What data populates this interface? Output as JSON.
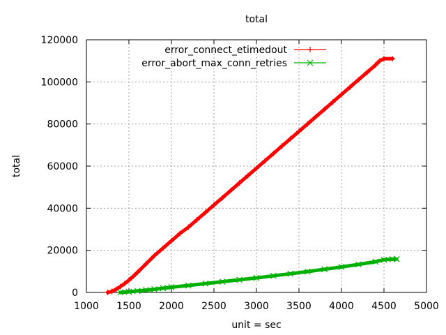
{
  "chart_data": {
    "type": "line",
    "title": "total",
    "xlabel": "unit = sec",
    "ylabel": "total",
    "xlim": [
      1000,
      5000
    ],
    "ylim": [
      0,
      120000
    ],
    "x_ticks": [
      1000,
      1500,
      2000,
      2500,
      3000,
      3500,
      4000,
      4500,
      5000
    ],
    "y_ticks": [
      0,
      20000,
      40000,
      60000,
      80000,
      100000,
      120000
    ],
    "grid": true,
    "legend_position": "top-center",
    "series": [
      {
        "name": "error_connect_etimedout",
        "color": "#ff0000",
        "marker": "plus",
        "points": [
          [
            1250,
            0
          ],
          [
            1300,
            500
          ],
          [
            1350,
            1500
          ],
          [
            1400,
            2800
          ],
          [
            1450,
            4200
          ],
          [
            1500,
            5800
          ],
          [
            1550,
            7600
          ],
          [
            1600,
            9500
          ],
          [
            1700,
            13500
          ],
          [
            1800,
            17500
          ],
          [
            1900,
            21000
          ],
          [
            2000,
            24500
          ],
          [
            2100,
            28000
          ],
          [
            2200,
            31000
          ],
          [
            2300,
            34500
          ],
          [
            2400,
            38000
          ],
          [
            2500,
            41500
          ],
          [
            2600,
            45000
          ],
          [
            2700,
            48500
          ],
          [
            2800,
            52000
          ],
          [
            2900,
            55500
          ],
          [
            3000,
            59000
          ],
          [
            3100,
            62500
          ],
          [
            3200,
            66000
          ],
          [
            3300,
            69500
          ],
          [
            3400,
            73000
          ],
          [
            3500,
            76500
          ],
          [
            3600,
            80000
          ],
          [
            3700,
            83500
          ],
          [
            3800,
            87000
          ],
          [
            3900,
            90500
          ],
          [
            4000,
            94000
          ],
          [
            4100,
            97500
          ],
          [
            4200,
            101000
          ],
          [
            4300,
            104500
          ],
          [
            4400,
            108000
          ],
          [
            4450,
            110000
          ],
          [
            4500,
            111000
          ],
          [
            4600,
            111000
          ]
        ]
      },
      {
        "name": "error_abort_max_conn_retries",
        "color": "#00b000",
        "marker": "x",
        "points": [
          [
            1400,
            0
          ],
          [
            1500,
            300
          ],
          [
            1600,
            700
          ],
          [
            1700,
            1100
          ],
          [
            1800,
            1500
          ],
          [
            1900,
            2000
          ],
          [
            2000,
            2500
          ],
          [
            2200,
            3300
          ],
          [
            2400,
            4200
          ],
          [
            2600,
            5100
          ],
          [
            2800,
            6000
          ],
          [
            3000,
            6900
          ],
          [
            3200,
            7900
          ],
          [
            3400,
            8900
          ],
          [
            3600,
            9900
          ],
          [
            3800,
            11000
          ],
          [
            4000,
            12100
          ],
          [
            4200,
            13300
          ],
          [
            4400,
            14600
          ],
          [
            4500,
            15500
          ],
          [
            4600,
            15800
          ],
          [
            4650,
            15800
          ]
        ]
      }
    ]
  }
}
